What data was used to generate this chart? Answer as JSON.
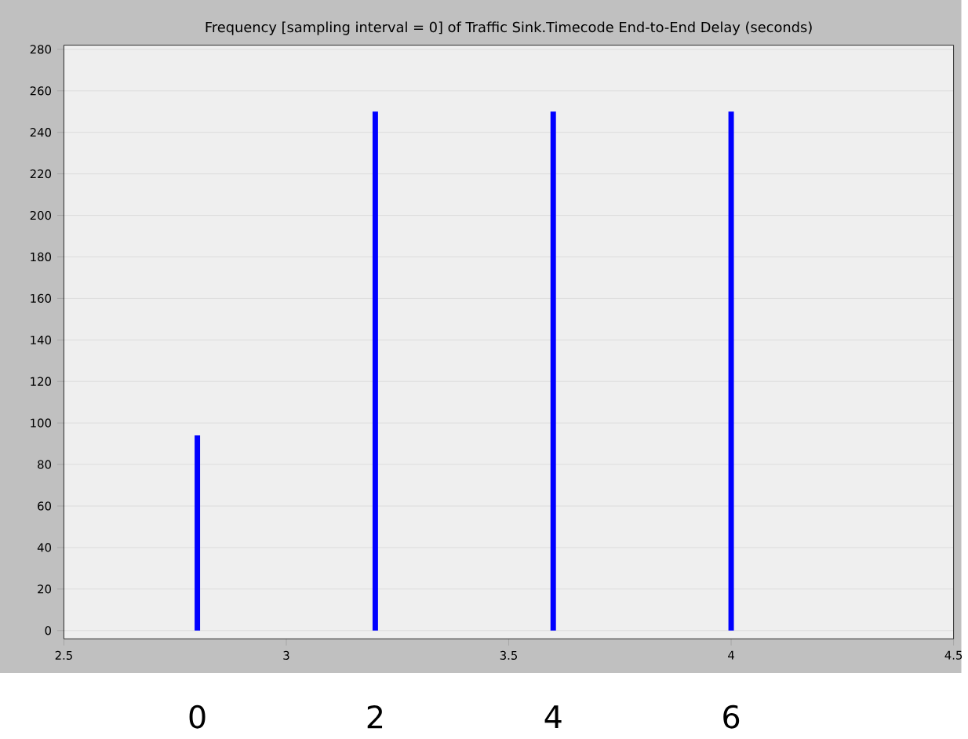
{
  "chart_data": {
    "type": "bar",
    "title": "Frequency [sampling interval = 0] of Traffic Sink.Timecode End-to-End Delay (seconds)",
    "x": [
      2.8,
      3.2,
      3.6,
      4.0
    ],
    "values": [
      94,
      250,
      250,
      250
    ],
    "color": "#0000ff",
    "xlim": [
      2.5,
      4.5
    ],
    "xticks": [
      2.5,
      3,
      3.5,
      4,
      4.5
    ],
    "ylim": [
      -4,
      282
    ],
    "yticks": [
      0,
      20,
      40,
      60,
      80,
      100,
      120,
      140,
      160,
      180,
      200,
      220,
      240,
      260,
      280
    ],
    "grid": "y",
    "annotations": [
      "0",
      "2",
      "4",
      "6"
    ]
  }
}
